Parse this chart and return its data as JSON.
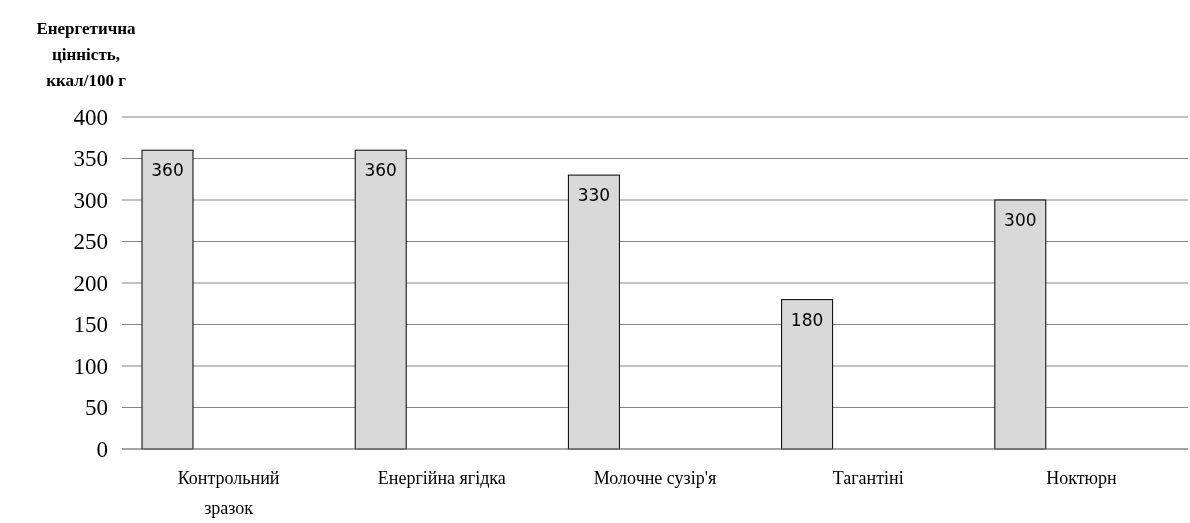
{
  "chart_data": {
    "type": "bar",
    "ylabel": "Енергетична цінність, ккал/100 г",
    "categories": [
      "Контрольний зразок",
      "Енергійна ягідка",
      "Молочне сузір'я",
      "Тагантіні",
      "Ноктюрн"
    ],
    "values": [
      360,
      360,
      330,
      180,
      300
    ],
    "color": "#d9d9d9",
    "ylim": [
      0,
      400
    ],
    "yticks": [
      0,
      50,
      100,
      150,
      200,
      250,
      300,
      350,
      400
    ],
    "grid": "y",
    "data_labels": true
  }
}
